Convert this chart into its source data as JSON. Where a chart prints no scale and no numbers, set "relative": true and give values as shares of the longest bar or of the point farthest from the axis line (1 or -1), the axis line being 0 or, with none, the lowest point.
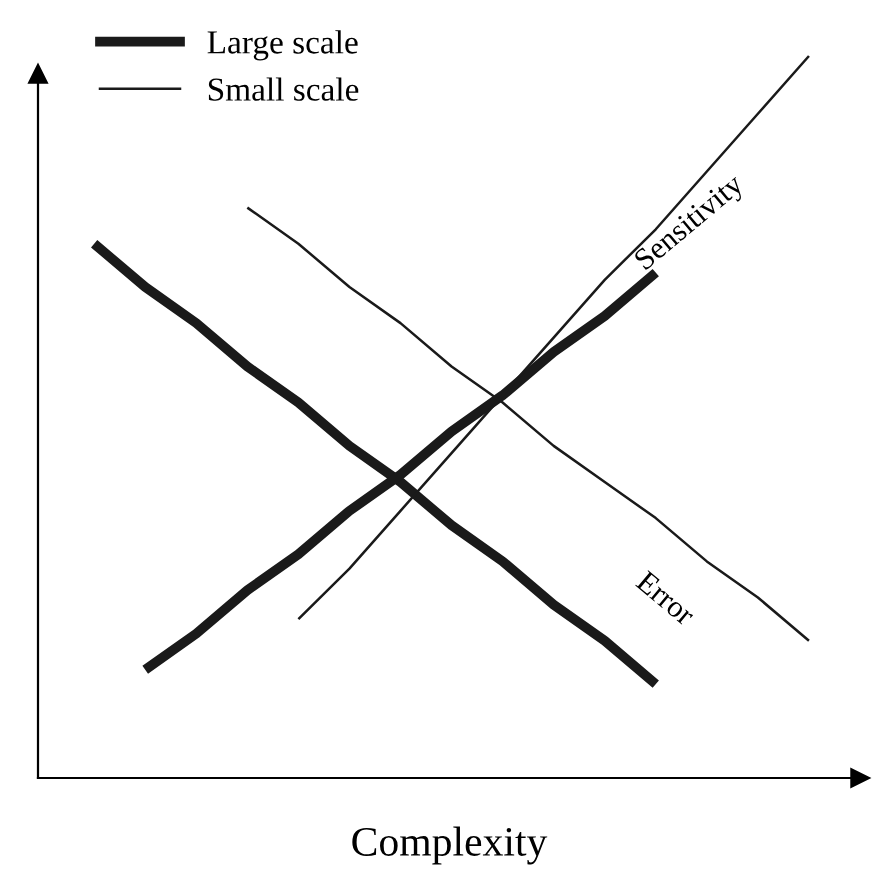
{
  "chart_data": {
    "type": "line",
    "relative": true,
    "xlabel": "Complexity",
    "legend": "top left",
    "categories": [
      null,
      null,
      null,
      null,
      null,
      null,
      null,
      null,
      null,
      null,
      null,
      null,
      null,
      null,
      null
    ],
    "series": [
      {
        "name": "Large scale",
        "color": "#1a1a1a",
        "values": [
          0.74,
          0.68,
          0.63,
          0.57,
          0.52,
          0.46,
          0.41,
          0.35,
          0.3,
          0.24,
          0.19,
          0.13,
          null,
          null,
          null
        ]
      },
      {
        "color": "#1a1a1a",
        "values": [
          null,
          0.15,
          0.2,
          0.26,
          0.31,
          0.37,
          0.42,
          0.48,
          0.53,
          0.59,
          0.64,
          0.7,
          null,
          null,
          null
        ]
      },
      {
        "name": "Small scale",
        "color": "#1a1a1a",
        "values": [
          null,
          null,
          null,
          0.79,
          0.74,
          0.68,
          0.63,
          0.57,
          0.52,
          0.46,
          0.41,
          0.36,
          0.3,
          0.25,
          0.19
        ]
      },
      {
        "color": "#1a1a1a",
        "values": [
          null,
          null,
          null,
          null,
          0.22,
          0.29,
          0.37,
          0.45,
          0.53,
          0.61,
          0.69,
          0.76,
          0.84,
          0.92,
          1.0
        ]
      }
    ],
    "annotations": [
      "Sensitivity",
      "Error"
    ]
  }
}
